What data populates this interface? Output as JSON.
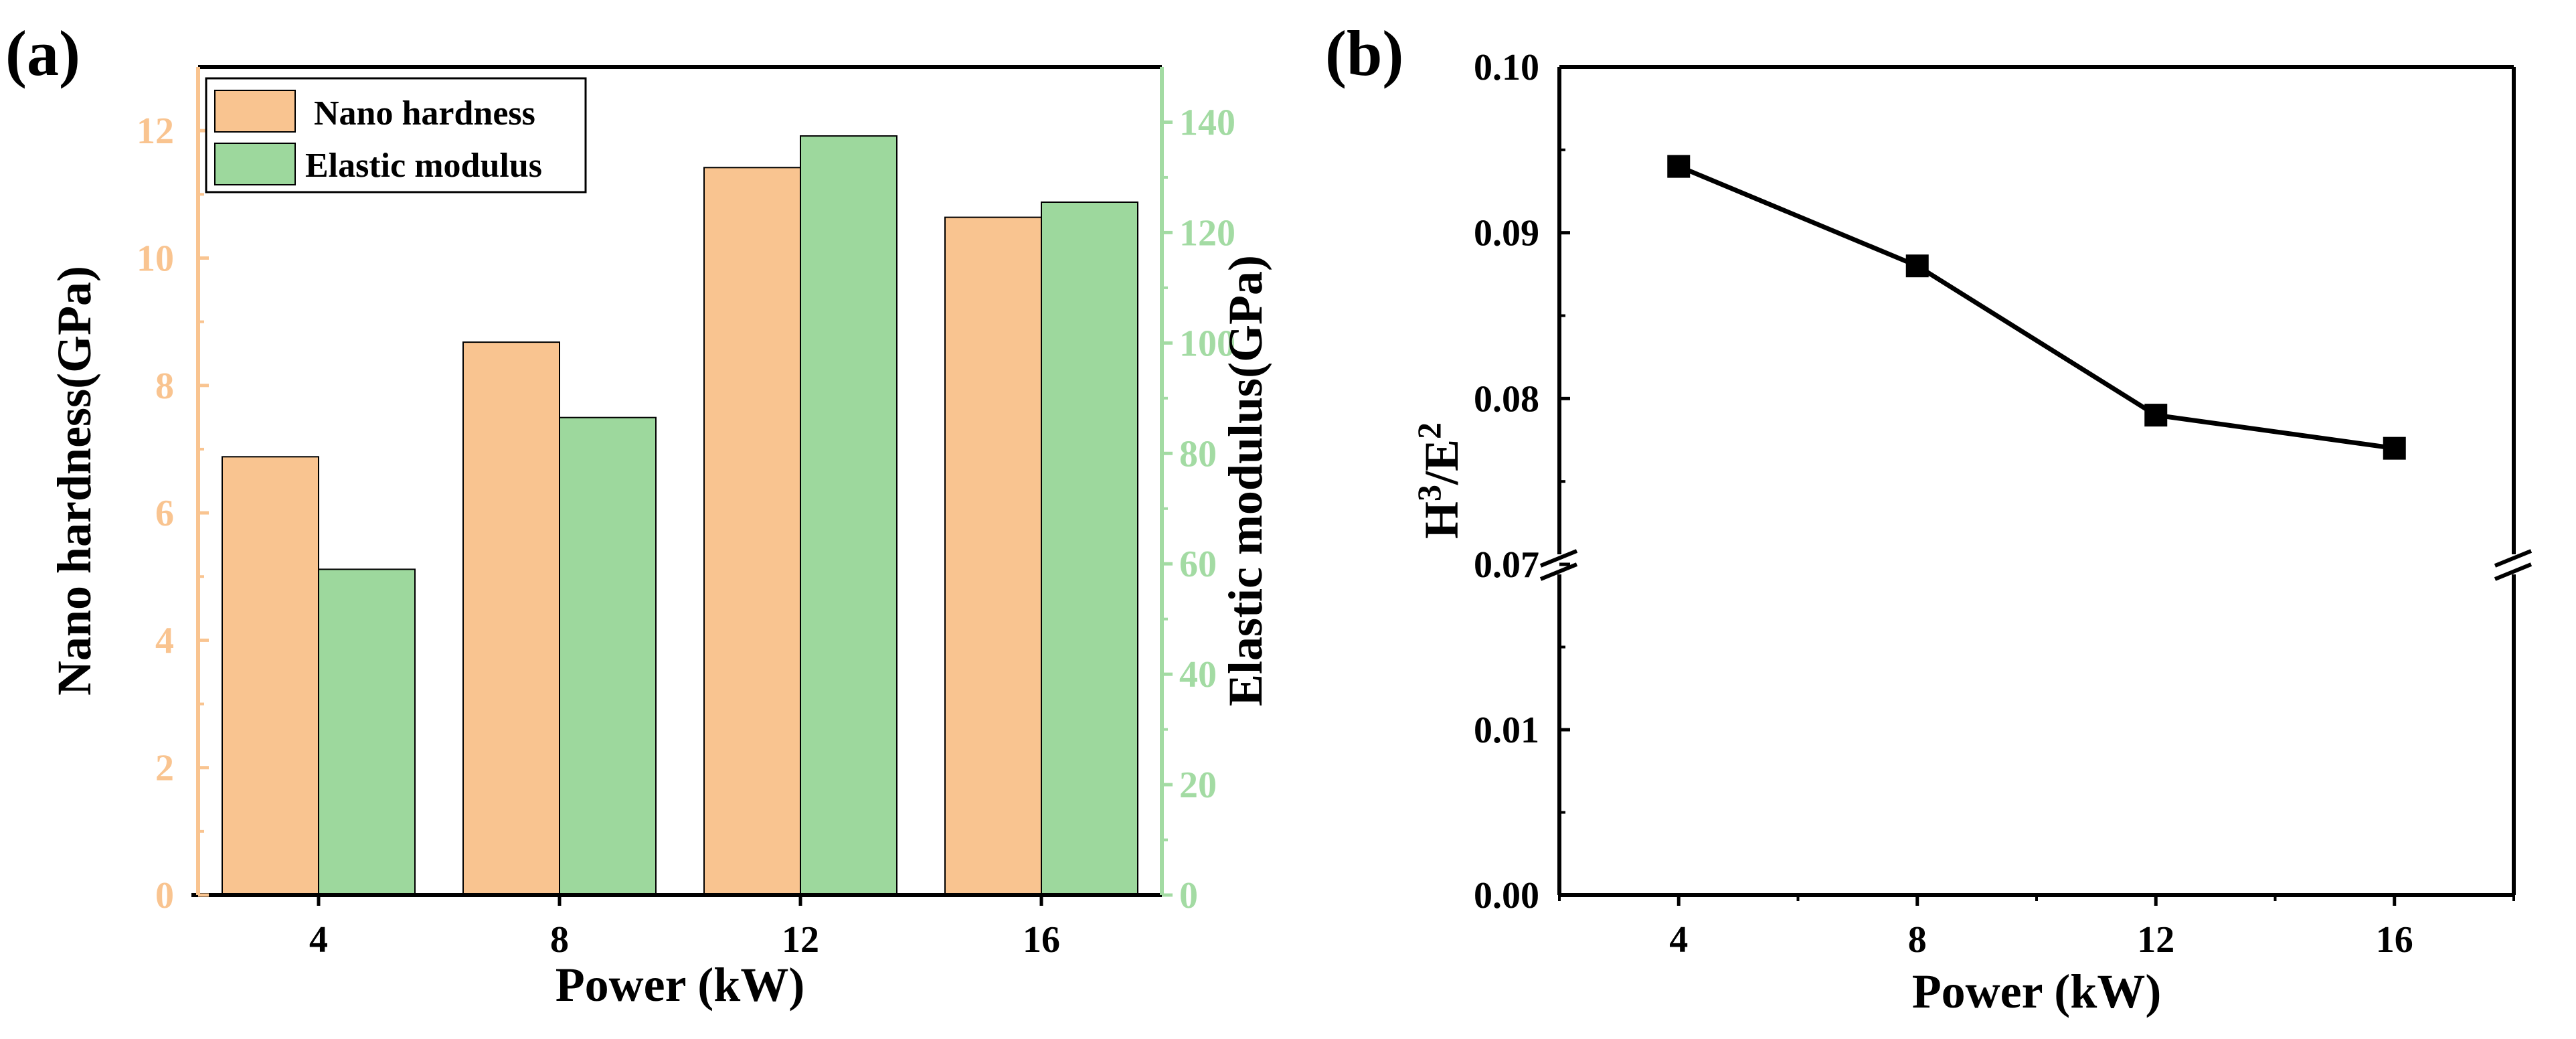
{
  "colors": {
    "nano": "#f9c490",
    "elastic": "#9dd89d",
    "left_axis": "#f9c490",
    "right_axis": "#a3dba3",
    "black": "#000000"
  },
  "chart_data": [
    {
      "panel": "(a)",
      "type": "bar",
      "categories": [
        "4",
        "8",
        "12",
        "16"
      ],
      "series": [
        {
          "name": "Nano hardness",
          "axis": "left",
          "values": [
            6.88,
            8.68,
            11.42,
            10.64
          ]
        },
        {
          "name": "Elastic modulus",
          "axis": "right",
          "values": [
            59.0,
            86.5,
            137.5,
            125.5
          ]
        }
      ],
      "xlabel": "Power (kW)",
      "ylabel": "Nano hardness(GPa)",
      "y2label": "Elastic modulus(GPa)",
      "ylim": [
        0,
        13
      ],
      "y2lim": [
        0,
        150
      ],
      "yticks": [
        "0",
        "2",
        "4",
        "6",
        "8",
        "10",
        "12"
      ],
      "y2ticks": [
        "0",
        "20",
        "40",
        "60",
        "80",
        "100",
        "120",
        "140"
      ],
      "legend": [
        "Nano hardness",
        "Elastic modulus"
      ],
      "legend_position": "top-left"
    },
    {
      "panel": "(b)",
      "type": "line",
      "x": [
        4,
        8,
        12,
        16
      ],
      "y": [
        0.094,
        0.088,
        0.079,
        0.077
      ],
      "xticks": [
        "4",
        "8",
        "12",
        "16"
      ],
      "xlim": [
        2,
        18
      ],
      "xlabel": "Power (kW)",
      "ylabel_base": "H",
      "ylabel_exp1": "3",
      "ylabel_mid": "/E",
      "ylabel_exp2": "2",
      "axis_break": true,
      "lower_ylim": [
        0.0,
        0.02
      ],
      "upper_ylim": [
        0.07,
        0.1
      ],
      "lower_yticks": [
        "0.00",
        "0.01"
      ],
      "upper_yticks": [
        "0.07",
        "0.08",
        "0.09",
        "0.10"
      ]
    }
  ]
}
